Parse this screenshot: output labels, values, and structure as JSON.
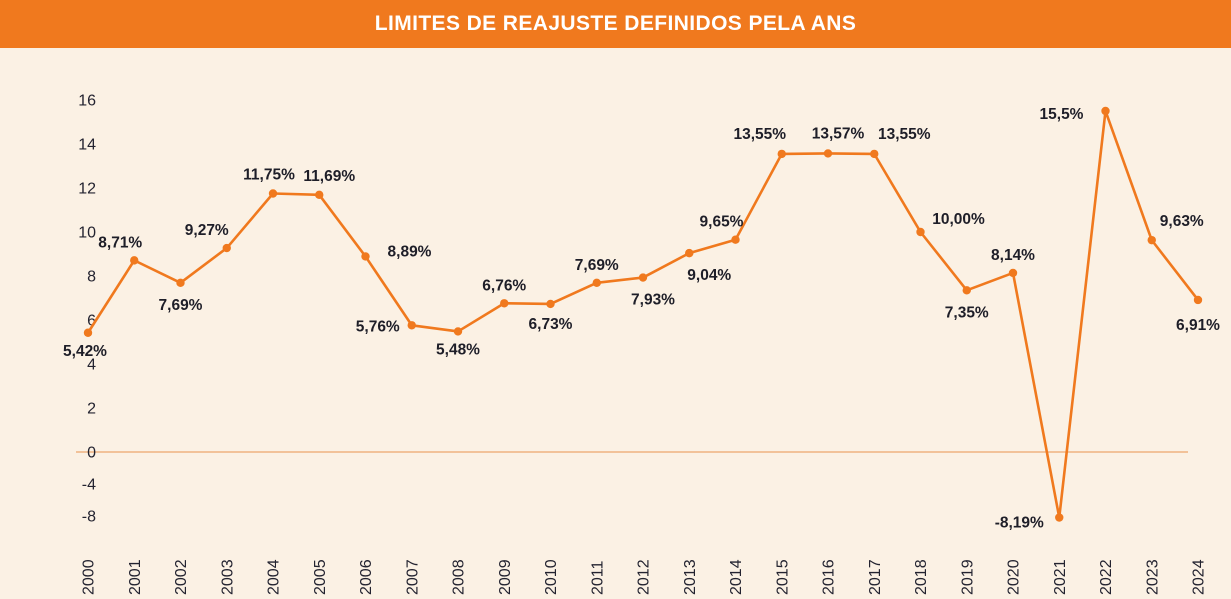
{
  "header": {
    "title": "LIMITES DE REAJUSTE DEFINIDOS PELA ANS"
  },
  "chart_data": {
    "type": "line",
    "title": "LIMITES DE REAJUSTE DEFINIDOS PELA ANS",
    "x": [
      2000,
      2001,
      2002,
      2003,
      2004,
      2005,
      2006,
      2007,
      2008,
      2009,
      2010,
      2011,
      2012,
      2013,
      2014,
      2015,
      2016,
      2017,
      2018,
      2019,
      2020,
      2021,
      2022,
      2023,
      2024
    ],
    "values": [
      5.42,
      8.71,
      7.69,
      9.27,
      11.75,
      11.69,
      8.89,
      5.76,
      5.48,
      6.76,
      6.73,
      7.69,
      7.93,
      9.04,
      9.65,
      13.55,
      13.57,
      13.55,
      10.0,
      7.35,
      8.14,
      -8.19,
      15.5,
      9.63,
      6.91
    ],
    "labels": [
      "5,42%",
      "8,71%",
      "7,69%",
      "9,27%",
      "11,75%",
      "11,69%",
      "8,89%",
      "5,76%",
      "5,48%",
      "6,76%",
      "6,73%",
      "7,69%",
      "7,93%",
      "9,04%",
      "9,65%",
      "13,55%",
      "13,57%",
      "13,55%",
      "10,00%",
      "7,35%",
      "8,14%",
      "-8,19%",
      "15,5%",
      "9,63%",
      "6,91%"
    ],
    "xlabel": "",
    "ylabel": "",
    "ylim": [
      -8,
      16
    ],
    "yticks": [
      16,
      14,
      12,
      10,
      8,
      6,
      4,
      2,
      0,
      -4,
      -8
    ],
    "grid": "off",
    "legend": "none",
    "line_color": "#F0791E",
    "point_color": "#F0791E",
    "zero_line_color": "#E9944E",
    "label_color": "#1E1E28",
    "axis_text_color": "#232330",
    "background_color": "#FBF1E4",
    "header_background": "#F0791E",
    "header_text_color": "#FFFFFF"
  }
}
